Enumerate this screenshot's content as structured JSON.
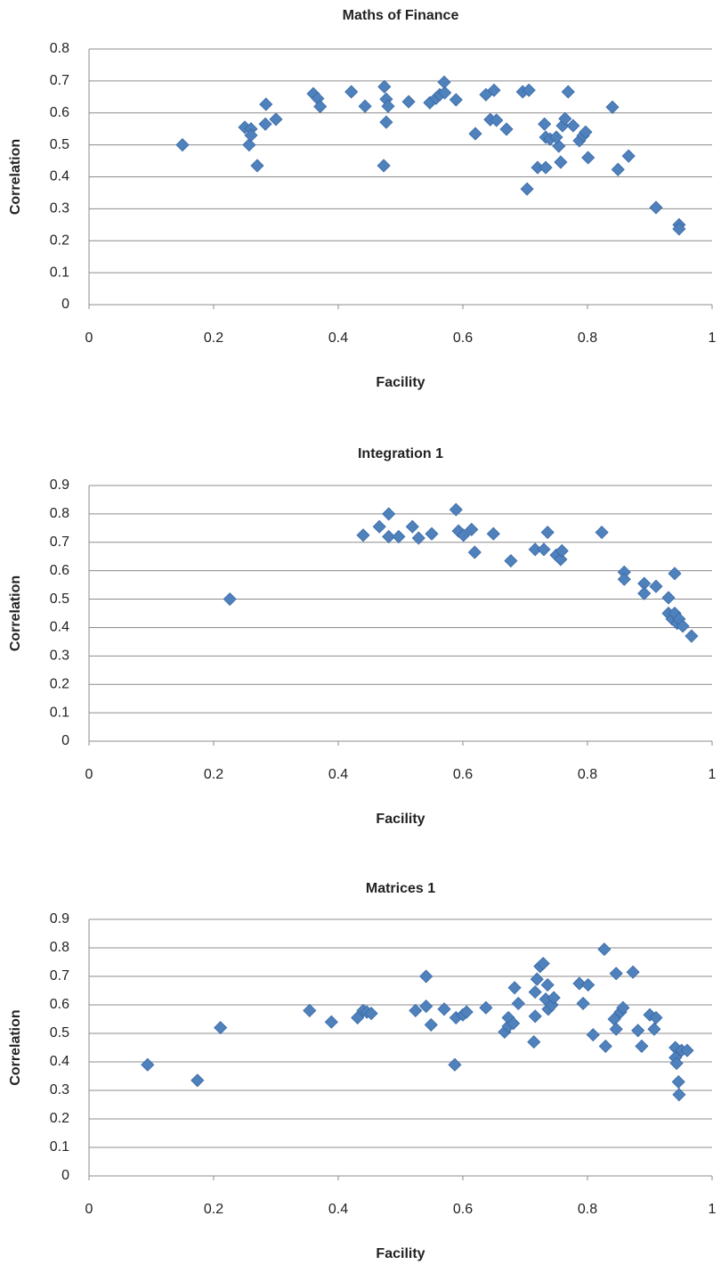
{
  "chart_data": [
    {
      "type": "scatter",
      "title": "Maths of Finance",
      "xlabel": "Facility",
      "ylabel": "Correlation",
      "color": "#4f81bd",
      "grid": true,
      "xlim": [
        0,
        1
      ],
      "xticks": [
        0,
        0.2,
        0.4,
        0.6,
        0.8,
        1
      ],
      "ylim": [
        0,
        0.8
      ],
      "yticks": [
        0,
        0.1,
        0.2,
        0.3,
        0.4,
        0.5,
        0.6,
        0.7,
        0.8
      ],
      "x": [
        0.15,
        0.25,
        0.26,
        0.257,
        0.26,
        0.27,
        0.284,
        0.283,
        0.3,
        0.36,
        0.367,
        0.371,
        0.421,
        0.443,
        0.474,
        0.477,
        0.48,
        0.477,
        0.473,
        0.513,
        0.547,
        0.557,
        0.563,
        0.571,
        0.57,
        0.589,
        0.62,
        0.637,
        0.644,
        0.65,
        0.654,
        0.67,
        0.696,
        0.703,
        0.706,
        0.72,
        0.733,
        0.731,
        0.733,
        0.74,
        0.754,
        0.757,
        0.75,
        0.76,
        0.764,
        0.769,
        0.777,
        0.787,
        0.793,
        0.797,
        0.801,
        0.84,
        0.849,
        0.866,
        0.91,
        0.947,
        0.947
      ],
      "values": [
        0.5,
        0.555,
        0.55,
        0.5,
        0.53,
        0.435,
        0.627,
        0.565,
        0.58,
        0.66,
        0.645,
        0.62,
        0.666,
        0.621,
        0.682,
        0.643,
        0.621,
        0.571,
        0.435,
        0.635,
        0.632,
        0.646,
        0.657,
        0.663,
        0.696,
        0.641,
        0.535,
        0.657,
        0.579,
        0.671,
        0.577,
        0.549,
        0.666,
        0.362,
        0.671,
        0.429,
        0.429,
        0.565,
        0.524,
        0.518,
        0.496,
        0.446,
        0.524,
        0.56,
        0.582,
        0.666,
        0.56,
        0.513,
        0.529,
        0.54,
        0.46,
        0.618,
        0.423,
        0.465,
        0.304,
        0.25,
        0.237
      ]
    },
    {
      "type": "scatter",
      "title": "Integration 1",
      "xlabel": "Facility",
      "ylabel": "Correlation",
      "color": "#4f81bd",
      "grid": true,
      "xlim": [
        0,
        1
      ],
      "xticks": [
        0,
        0.2,
        0.4,
        0.6,
        0.8,
        1
      ],
      "ylim": [
        0,
        0.9
      ],
      "yticks": [
        0,
        0.1,
        0.2,
        0.3,
        0.4,
        0.5,
        0.6,
        0.7,
        0.8,
        0.9
      ],
      "x": [
        0.226,
        0.44,
        0.466,
        0.481,
        0.481,
        0.497,
        0.519,
        0.529,
        0.55,
        0.589,
        0.593,
        0.601,
        0.614,
        0.619,
        0.649,
        0.677,
        0.716,
        0.73,
        0.736,
        0.75,
        0.757,
        0.759,
        0.823,
        0.859,
        0.859,
        0.891,
        0.891,
        0.91,
        0.93,
        0.93,
        0.936,
        0.94,
        0.94,
        0.944,
        0.947,
        0.953,
        0.967
      ],
      "values": [
        0.5,
        0.725,
        0.755,
        0.8,
        0.72,
        0.72,
        0.755,
        0.715,
        0.73,
        0.815,
        0.74,
        0.725,
        0.745,
        0.665,
        0.73,
        0.635,
        0.675,
        0.675,
        0.735,
        0.655,
        0.64,
        0.67,
        0.735,
        0.595,
        0.57,
        0.555,
        0.52,
        0.545,
        0.505,
        0.45,
        0.43,
        0.59,
        0.45,
        0.415,
        0.43,
        0.405,
        0.37
      ]
    },
    {
      "type": "scatter",
      "title": "Matrices 1",
      "xlabel": "Facility",
      "ylabel": "Correlation",
      "color": "#4f81bd",
      "grid": true,
      "xlim": [
        0,
        1
      ],
      "xticks": [
        0,
        0.2,
        0.4,
        0.6,
        0.8,
        1
      ],
      "ylim": [
        0,
        0.9
      ],
      "yticks": [
        0,
        0.1,
        0.2,
        0.3,
        0.4,
        0.5,
        0.6,
        0.7,
        0.8,
        0.9
      ],
      "x": [
        0.094,
        0.174,
        0.211,
        0.354,
        0.389,
        0.431,
        0.44,
        0.446,
        0.453,
        0.524,
        0.541,
        0.541,
        0.549,
        0.57,
        0.587,
        0.589,
        0.6,
        0.606,
        0.637,
        0.667,
        0.673,
        0.673,
        0.681,
        0.683,
        0.689,
        0.714,
        0.716,
        0.716,
        0.719,
        0.724,
        0.729,
        0.733,
        0.736,
        0.737,
        0.743,
        0.746,
        0.787,
        0.793,
        0.801,
        0.809,
        0.827,
        0.829,
        0.843,
        0.846,
        0.846,
        0.853,
        0.857,
        0.873,
        0.881,
        0.887,
        0.9,
        0.907,
        0.91,
        0.941,
        0.941,
        0.943,
        0.946,
        0.947,
        0.951,
        0.96
      ],
      "values": [
        0.39,
        0.335,
        0.52,
        0.58,
        0.54,
        0.555,
        0.58,
        0.575,
        0.57,
        0.58,
        0.7,
        0.595,
        0.53,
        0.585,
        0.39,
        0.555,
        0.565,
        0.575,
        0.59,
        0.505,
        0.525,
        0.555,
        0.535,
        0.66,
        0.605,
        0.47,
        0.645,
        0.56,
        0.69,
        0.735,
        0.745,
        0.62,
        0.67,
        0.585,
        0.6,
        0.625,
        0.675,
        0.605,
        0.67,
        0.495,
        0.795,
        0.455,
        0.55,
        0.71,
        0.515,
        0.575,
        0.59,
        0.715,
        0.51,
        0.455,
        0.565,
        0.515,
        0.555,
        0.45,
        0.415,
        0.395,
        0.33,
        0.285,
        0.44,
        0.44
      ]
    }
  ]
}
